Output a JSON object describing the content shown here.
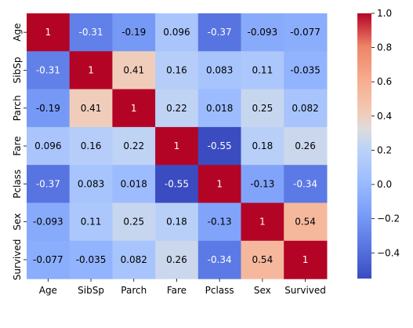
{
  "chart_data": {
    "type": "heatmap",
    "title": "",
    "xlabel": "",
    "ylabel": "",
    "x_labels": [
      "Age",
      "SibSp",
      "Parch",
      "Fare",
      "Pclass",
      "Sex",
      "Survived"
    ],
    "y_labels": [
      "Age",
      "SibSp",
      "Parch",
      "Fare",
      "Pclass",
      "Sex",
      "Survived"
    ],
    "values": [
      [
        1,
        -0.31,
        -0.19,
        0.096,
        -0.37,
        -0.093,
        -0.077
      ],
      [
        -0.31,
        1,
        0.41,
        0.16,
        0.083,
        0.11,
        -0.035
      ],
      [
        -0.19,
        0.41,
        1,
        0.22,
        0.018,
        0.25,
        0.082
      ],
      [
        0.096,
        0.16,
        0.22,
        1,
        -0.55,
        0.18,
        0.26
      ],
      [
        -0.37,
        0.083,
        0.018,
        -0.55,
        1,
        -0.13,
        -0.34
      ],
      [
        -0.093,
        0.11,
        0.25,
        0.18,
        -0.13,
        1,
        0.54
      ],
      [
        -0.077,
        -0.035,
        0.082,
        0.26,
        -0.34,
        0.54,
        1
      ]
    ],
    "annotations": [
      [
        "1",
        "-0.31",
        "-0.19",
        "0.096",
        "-0.37",
        "-0.093",
        "-0.077"
      ],
      [
        "-0.31",
        "1",
        "0.41",
        "0.16",
        "0.083",
        "0.11",
        "-0.035"
      ],
      [
        "-0.19",
        "0.41",
        "1",
        "0.22",
        "0.018",
        "0.25",
        "0.082"
      ],
      [
        "0.096",
        "0.16",
        "0.22",
        "1",
        "-0.55",
        "0.18",
        "0.26"
      ],
      [
        "-0.37",
        "0.083",
        "0.018",
        "-0.55",
        "1",
        "-0.13",
        "-0.34"
      ],
      [
        "-0.093",
        "0.11",
        "0.25",
        "0.18",
        "-0.13",
        "1",
        "0.54"
      ],
      [
        "-0.077",
        "-0.035",
        "0.082",
        "0.26",
        "-0.34",
        "0.54",
        "1"
      ]
    ],
    "colormap": "coolwarm",
    "vmin": -0.55,
    "vmax": 1,
    "colorbar_ticks": [
      1.0,
      0.8,
      0.6,
      0.4,
      0.2,
      0.0,
      -0.2,
      -0.4
    ],
    "colorbar_tick_labels": [
      "1.0",
      "0.8",
      "0.6",
      "0.4",
      "0.2",
      "0.0",
      "−0.2",
      "−0.4"
    ],
    "legend": "colorbar-right"
  }
}
